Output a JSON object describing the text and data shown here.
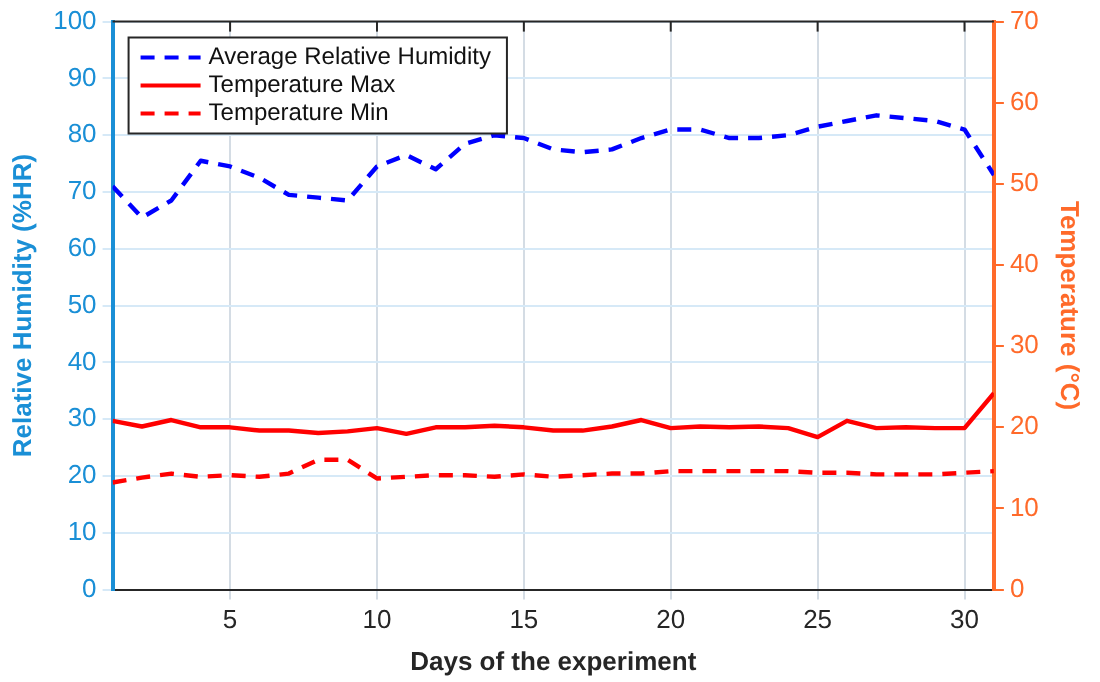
{
  "chart_data": {
    "type": "line",
    "xlabel": "Days of the experiment",
    "ylabel": "Relative Humidity (%HR)",
    "y2label": "Temperature (°C)",
    "x": [
      1,
      2,
      3,
      4,
      5,
      6,
      7,
      8,
      9,
      10,
      11,
      12,
      13,
      14,
      15,
      16,
      17,
      18,
      19,
      20,
      21,
      22,
      23,
      24,
      25,
      26,
      27,
      28,
      29,
      30,
      31
    ],
    "series": [
      {
        "name": "Average Relative Humidity",
        "color": "#0000ff",
        "line_style": "dashed",
        "values": [
          71,
          65.5,
          68.5,
          75.5,
          74.5,
          72.5,
          69.5,
          69,
          68.5,
          74.5,
          76.5,
          74,
          78.5,
          80,
          79.5,
          77.5,
          77,
          77.5,
          79.5,
          81,
          81,
          79.5,
          79.5,
          80,
          81.5,
          82.5,
          83.5,
          83,
          82.5,
          81,
          73
        ]
      },
      {
        "name": "Temperature Max",
        "color": "#ff0000",
        "line_style": "solid",
        "axis": "y2",
        "values": [
          20.8,
          20.1,
          20.9,
          20,
          20,
          19.6,
          19.6,
          19.3,
          19.5,
          19.9,
          19.2,
          20,
          20,
          20.2,
          20,
          19.6,
          19.6,
          20.1,
          20.9,
          19.9,
          20.1,
          20,
          20.1,
          19.9,
          18.8,
          20.8,
          19.9,
          20,
          19.9,
          19.9,
          24.2
        ]
      },
      {
        "name": "Temperature Min",
        "color": "#ff0000",
        "line_style": "dashed",
        "axis": "y2",
        "values": [
          13.2,
          13.8,
          14.3,
          13.9,
          14.1,
          13.9,
          14.3,
          16,
          16,
          13.7,
          13.9,
          14.1,
          14.1,
          13.9,
          14.2,
          13.9,
          14.1,
          14.3,
          14.3,
          14.6,
          14.6,
          14.6,
          14.6,
          14.6,
          14.4,
          14.4,
          14.2,
          14.2,
          14.2,
          14.4,
          14.6
        ]
      }
    ],
    "xlim": [
      1,
      31
    ],
    "xticks": [
      5,
      10,
      15,
      20,
      25,
      30
    ],
    "ylim": [
      0,
      100
    ],
    "yticks": [
      0,
      10,
      20,
      30,
      40,
      50,
      60,
      70,
      80,
      90,
      100
    ],
    "y2lim": [
      0,
      70
    ],
    "y2ticks": [
      0,
      10,
      20,
      30,
      40,
      50,
      60,
      70
    ],
    "grid": true,
    "legend": "top left",
    "marker": "none"
  }
}
